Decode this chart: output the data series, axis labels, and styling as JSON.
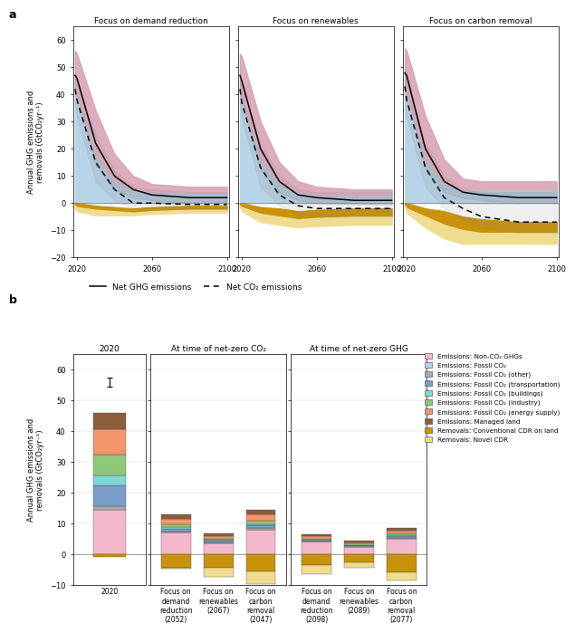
{
  "panel_a": {
    "titles": [
      "Focus on demand reduction",
      "Focus on renewables",
      "Focus on carbon removal"
    ],
    "ylabel": "Annual GHG emissions and\nremovals (GtCO₂yr⁻¹)",
    "ylim": [
      -20,
      65
    ],
    "yticks": [
      -20,
      -10,
      0,
      10,
      20,
      30,
      40,
      50,
      60
    ],
    "xlim": [
      2018,
      2101
    ],
    "xticks": [
      2020,
      2060,
      2100
    ],
    "colors": {
      "non_co2": "#f2b8cc",
      "fossil_co2": "#b8d4e8",
      "conv_cdr": "#c8920a",
      "novel_cdr": "#f0dc90"
    },
    "scenarios": [
      {
        "name": "demand",
        "pink_top": [
          56,
          55,
          34,
          18,
          10,
          7,
          6,
          6
        ],
        "pink_bot": [
          42,
          40,
          18,
          8,
          5,
          4,
          4,
          4
        ],
        "blue_top": [
          42,
          40,
          18,
          8,
          5,
          4,
          4,
          4
        ],
        "blue_bot": [
          0,
          0,
          0,
          0,
          0,
          0,
          0,
          0
        ],
        "conv_top": [
          0,
          0,
          -1,
          -1.5,
          -2,
          -1.5,
          -1,
          -1
        ],
        "conv_bot": [
          -1,
          -1.5,
          -2.5,
          -3,
          -3.5,
          -3,
          -2.5,
          -2.5
        ],
        "novel_top": [
          -1,
          -1.5,
          -2.5,
          -3,
          -3.5,
          -3,
          -2.5,
          -2.5
        ],
        "novel_bot": [
          -1.5,
          -3,
          -4.5,
          -4.5,
          -4.5,
          -4,
          -3.5,
          -3.5
        ],
        "ghg_upper": [
          56,
          55,
          34,
          18,
          10,
          7,
          6,
          6
        ],
        "ghg_lower": [
          42,
          40,
          14,
          5,
          2,
          1,
          0,
          0
        ],
        "ghg_mid": [
          47,
          46,
          22,
          10,
          5,
          3,
          2,
          2
        ],
        "co2_upper": [
          47,
          44,
          25,
          12,
          6,
          5,
          4,
          4
        ],
        "co2_lower": [
          36,
          32,
          8,
          1,
          -2,
          -2,
          -2,
          -2
        ],
        "co2_mid": [
          42,
          38,
          15,
          5,
          0,
          0,
          -0.5,
          -0.5
        ]
      },
      {
        "name": "renewables",
        "pink_top": [
          55,
          54,
          30,
          15,
          8,
          6,
          5,
          5
        ],
        "pink_bot": [
          41,
          39,
          16,
          7,
          4,
          3,
          3,
          3
        ],
        "blue_top": [
          41,
          39,
          16,
          7,
          4,
          3,
          3,
          3
        ],
        "blue_bot": [
          0,
          0,
          0,
          0,
          0,
          0,
          0,
          0
        ],
        "conv_top": [
          0,
          0,
          -1.5,
          -2,
          -3,
          -2.5,
          -2,
          -2
        ],
        "conv_bot": [
          -1,
          -1.5,
          -4,
          -5,
          -6,
          -5.5,
          -5,
          -5
        ],
        "novel_top": [
          -1,
          -1.5,
          -4,
          -5,
          -6,
          -5.5,
          -5,
          -5
        ],
        "novel_bot": [
          -1.5,
          -3,
          -7,
          -8,
          -9,
          -8.5,
          -8,
          -8
        ],
        "ghg_upper": [
          55,
          54,
          30,
          15,
          8,
          6,
          5,
          5
        ],
        "ghg_lower": [
          41,
          39,
          12,
          4,
          1,
          0,
          -0.5,
          -0.5
        ],
        "ghg_mid": [
          47,
          45,
          20,
          8,
          3,
          2,
          1,
          1
        ],
        "co2_upper": [
          47,
          43,
          22,
          10,
          5,
          4,
          4,
          4
        ],
        "co2_lower": [
          36,
          31,
          6,
          -1,
          -4,
          -5,
          -5,
          -5
        ],
        "co2_mid": [
          42,
          37,
          13,
          3,
          -1,
          -2,
          -2,
          -2
        ]
      },
      {
        "name": "carbon_removal",
        "pink_top": [
          57,
          56,
          32,
          16,
          9,
          8,
          8,
          8
        ],
        "pink_bot": [
          42,
          41,
          16,
          7,
          5,
          5,
          5,
          5
        ],
        "blue_top": [
          42,
          41,
          16,
          7,
          5,
          5,
          5,
          5
        ],
        "blue_bot": [
          0,
          0,
          0,
          0,
          0,
          0,
          0,
          0
        ],
        "conv_top": [
          0,
          0,
          -2,
          -3,
          -5,
          -6,
          -7,
          -7
        ],
        "conv_bot": [
          -1,
          -2,
          -5,
          -8,
          -10,
          -11,
          -11,
          -11
        ],
        "novel_top": [
          -1,
          -2,
          -5,
          -8,
          -10,
          -11,
          -11,
          -11
        ],
        "novel_bot": [
          -1.5,
          -3.5,
          -9,
          -13,
          -15,
          -15,
          -15,
          -15
        ],
        "ghg_upper": [
          57,
          56,
          32,
          16,
          9,
          8,
          8,
          8
        ],
        "ghg_lower": [
          42,
          41,
          12,
          4,
          2,
          1,
          0,
          0
        ],
        "ghg_mid": [
          48,
          47,
          20,
          8,
          4,
          3,
          2,
          2
        ],
        "co2_upper": [
          48,
          44,
          22,
          10,
          5,
          4,
          4,
          4
        ],
        "co2_lower": [
          36,
          32,
          6,
          -2,
          -6,
          -9,
          -11,
          -11
        ],
        "co2_mid": [
          43,
          38,
          13,
          2,
          -2,
          -5,
          -7,
          -7
        ]
      }
    ],
    "years": [
      2019,
      2020,
      2030,
      2040,
      2050,
      2060,
      2080,
      2100
    ]
  },
  "panel_b": {
    "ylabel": "Annual GHG emissions and\nremovals (GtCO₂yr⁻¹)",
    "ylim": [
      -10,
      65
    ],
    "yticks": [
      -10,
      0,
      10,
      20,
      30,
      40,
      50,
      60
    ],
    "colors": {
      "non_co2": "#f2b8cc",
      "fossil_co2": "#b8d4e8",
      "fossil_other": "#aaaaaa",
      "fossil_transport": "#7a9ec8",
      "fossil_buildings": "#7fd7d7",
      "fossil_industry": "#90c87a",
      "fossil_energy": "#f4956a",
      "managed_land": "#8B5E3C",
      "conv_cdr": "#c8920a",
      "novel_cdr": "#f0dc90"
    },
    "bar_2020": {
      "non_co2": 14.5,
      "fossil_other": 1.0,
      "fossil_transport": 7.0,
      "fossil_buildings": 3.0,
      "fossil_industry": 7.0,
      "fossil_energy": 8.0,
      "managed_land": 5.5,
      "conv_cdr": -1.0,
      "novel_cdr": 0.0
    },
    "bar_2020_top": 56,
    "bar_2020_err": 1.5,
    "groups": {
      "net_zero_co2": {
        "title": "At time of net-zero CO₂",
        "scenarios": [
          {
            "label": "Focus on\ndemand\nreduction\n(2052)",
            "non_co2": 7.0,
            "fossil_other": 0.5,
            "fossil_transport": 0.8,
            "fossil_buildings": 0.4,
            "fossil_industry": 1.0,
            "fossil_energy": 1.8,
            "managed_land": 1.5,
            "conv_cdr": -4.5,
            "novel_cdr": -0.3
          },
          {
            "label": "Focus on\nrenewables\n(2067)",
            "non_co2": 3.5,
            "fossil_other": 0.3,
            "fossil_transport": 0.5,
            "fossil_buildings": 0.3,
            "fossil_industry": 0.5,
            "fossil_energy": 0.8,
            "managed_land": 0.9,
            "conv_cdr": -4.5,
            "novel_cdr": -2.8
          },
          {
            "label": "Focus on\ncarbon\nremoval\n(2047)",
            "non_co2": 8.0,
            "fossil_other": 0.5,
            "fossil_transport": 0.9,
            "fossil_buildings": 0.4,
            "fossil_industry": 1.2,
            "fossil_energy": 2.0,
            "managed_land": 1.5,
            "conv_cdr": -5.5,
            "novel_cdr": -4.2
          }
        ]
      },
      "net_zero_ghg": {
        "title": "At time of net-zero GHG",
        "scenarios": [
          {
            "label": "Focus on\ndemand\nreduction\n(2098)",
            "non_co2": 4.0,
            "fossil_other": 0.2,
            "fossil_transport": 0.3,
            "fossil_buildings": 0.2,
            "fossil_industry": 0.4,
            "fossil_energy": 0.7,
            "managed_land": 0.7,
            "conv_cdr": -3.5,
            "novel_cdr": -3.0
          },
          {
            "label": "Focus on\nrenewables\n(2089)",
            "non_co2": 2.5,
            "fossil_other": 0.2,
            "fossil_transport": 0.2,
            "fossil_buildings": 0.2,
            "fossil_industry": 0.3,
            "fossil_energy": 0.5,
            "managed_land": 0.6,
            "conv_cdr": -2.5,
            "novel_cdr": -2.0
          },
          {
            "label": "Focus on\ncarbon\nremoval\n(2077)",
            "non_co2": 5.0,
            "fossil_other": 0.3,
            "fossil_transport": 0.5,
            "fossil_buildings": 0.3,
            "fossil_industry": 0.6,
            "fossil_energy": 1.0,
            "managed_land": 0.9,
            "conv_cdr": -6.0,
            "novel_cdr": -2.5
          }
        ]
      }
    },
    "legend_items": [
      {
        "label": "Emissions: Non-CO₂ GHGs",
        "color": "#f2b8cc"
      },
      {
        "label": "Emissions: Fossil CO₂",
        "color": "#b8d4e8"
      },
      {
        "label": "Emissions: Fossil CO₂ (other)",
        "color": "#aaaaaa"
      },
      {
        "label": "Emissions: Fossil CO₂ (transportation)",
        "color": "#7a9ec8"
      },
      {
        "label": "Emissions: Fossil CO₂ (buildings)",
        "color": "#7fd7d7"
      },
      {
        "label": "Emissions: Fossil CO₂ (industry)",
        "color": "#90c87a"
      },
      {
        "label": "Emissions: Fossil CO₂ (energy supply)",
        "color": "#f4956a"
      },
      {
        "label": "Emissions: Managed land",
        "color": "#8B5E3C"
      },
      {
        "label": "Removals: Conventional CDR on land",
        "color": "#c8920a"
      },
      {
        "label": "Removals: Novel CDR",
        "color": "#f0dc90"
      }
    ]
  }
}
